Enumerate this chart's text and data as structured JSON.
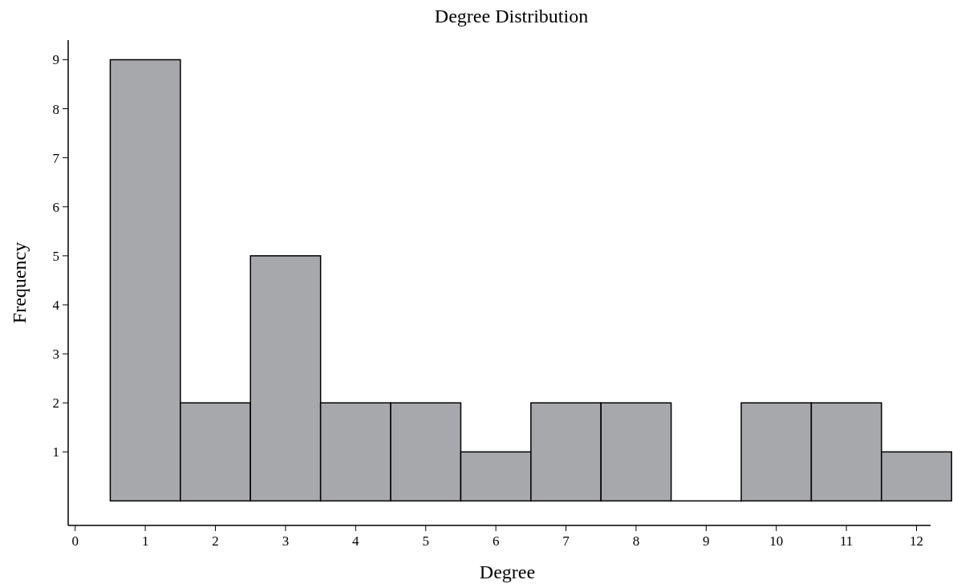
{
  "chart_data": {
    "type": "histogram",
    "title": "Degree Distribution",
    "xlabel": "Degree",
    "ylabel": "Frequency",
    "bins": [
      0.5,
      1.5,
      2.5,
      3.5,
      4.5,
      5.5,
      6.5,
      7.5,
      8.5,
      9.5,
      10.5,
      11.5,
      12.5
    ],
    "values": [
      9,
      2,
      5,
      2,
      2,
      1,
      2,
      2,
      0,
      2,
      2,
      1
    ],
    "color": "#a7a8ac",
    "xlim": [
      -0.1,
      12.2
    ],
    "xticks": [
      0,
      1,
      2,
      3,
      4,
      5,
      6,
      7,
      8,
      9,
      10,
      11,
      12
    ],
    "ylim": [
      -0.5,
      9.4
    ],
    "yticks": [
      1,
      2,
      3,
      4,
      5,
      6,
      7,
      8,
      9
    ],
    "grid": false
  }
}
